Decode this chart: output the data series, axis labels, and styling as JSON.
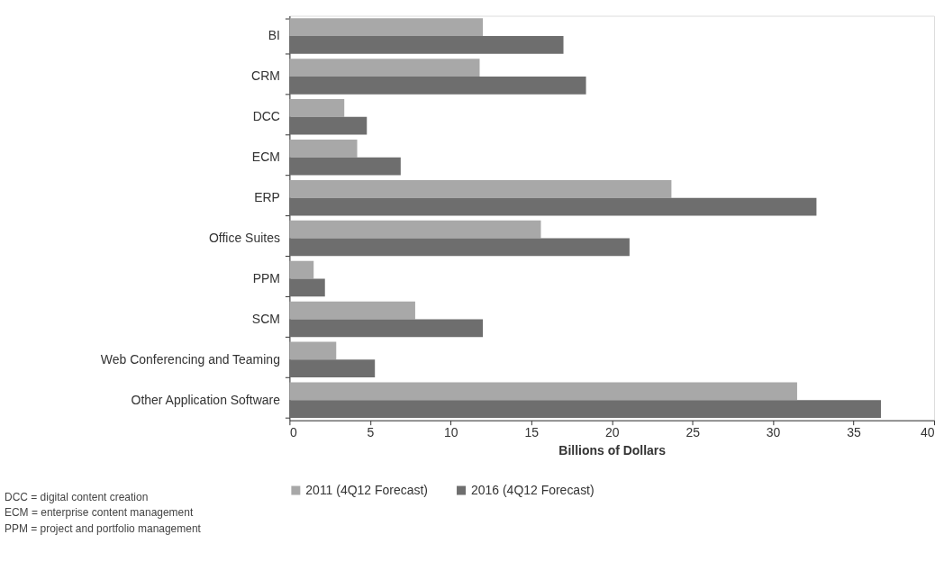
{
  "chart_data": {
    "type": "bar",
    "orientation": "horizontal",
    "xlabel": "Billions of Dollars",
    "categories": [
      "BI",
      "CRM",
      "DCC",
      "ECM",
      "ERP",
      "Office Suites",
      "PPM",
      "SCM",
      "Web Conferencing and Teaming",
      "Other Application Software"
    ],
    "series": [
      {
        "name": "2011 (4Q12 Forecast)",
        "color": "#a8a8a8",
        "values": [
          12.0,
          11.8,
          3.4,
          4.2,
          23.7,
          15.6,
          1.5,
          7.8,
          2.9,
          31.5
        ]
      },
      {
        "name": "2016 (4Q12 Forecast)",
        "color": "#6e6e6e",
        "values": [
          17.0,
          18.4,
          4.8,
          6.9,
          32.7,
          21.1,
          2.2,
          12.0,
          5.3,
          36.7
        ]
      }
    ],
    "xlim": [
      0,
      40
    ],
    "xticks": [
      0,
      5,
      10,
      15,
      20,
      25,
      30,
      35,
      40
    ],
    "grid": false,
    "legend": "bottom",
    "annotations": [
      "DCC = digital content creation",
      "ECM = enterprise content management",
      "PPM = project and portfolio management"
    ]
  }
}
